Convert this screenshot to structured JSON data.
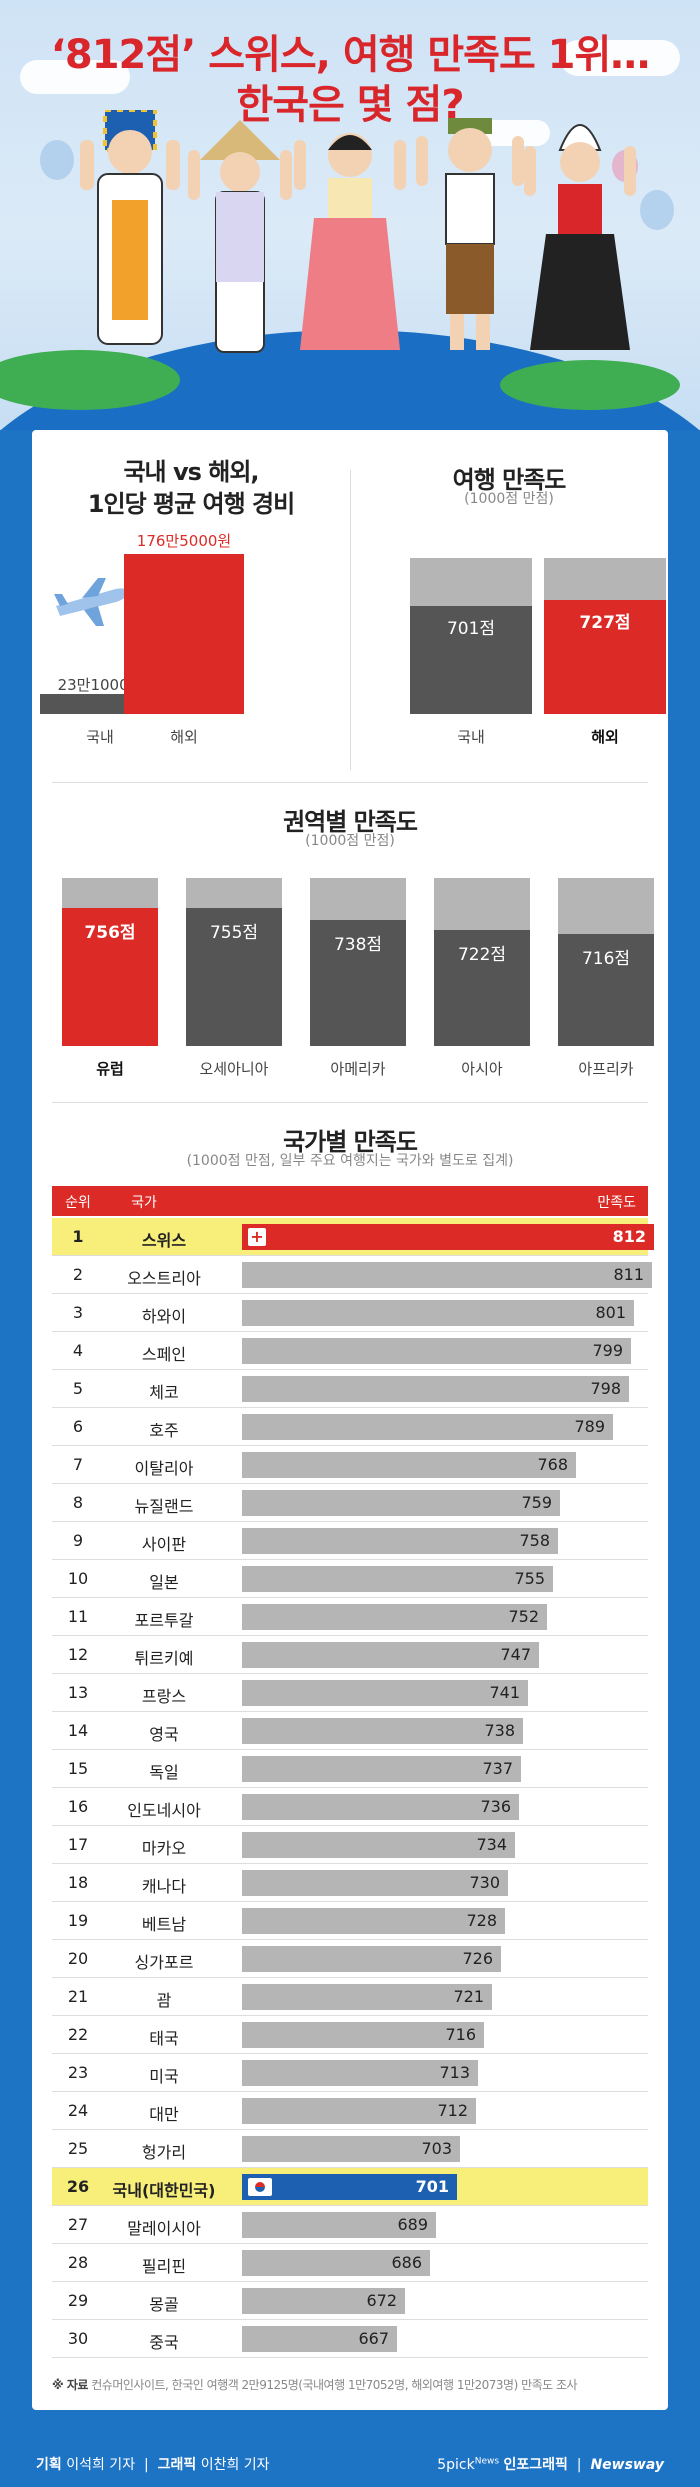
{
  "title": {
    "line1": "‘812점’ 스위스, 여행 만족도 1위…",
    "line2": "한국은 몇 점?"
  },
  "colors": {
    "red": "#dc2a26",
    "dark": "#555555",
    "gray": "#b5b5b5",
    "blue": "#1d73c4",
    "highlight": "#f7ef7a"
  },
  "cost": {
    "title_line1": "국내 vs 해외,",
    "title_line2": "1인당 평균 여행 경비",
    "plane_icon": "airplane-icon",
    "domestic": {
      "label": "국내",
      "value_text": "23만1000원",
      "value": 231000
    },
    "overseas": {
      "label": "해외",
      "value_text": "176만5000원",
      "value": 1765000
    }
  },
  "satisfaction": {
    "title": "여행 만족도",
    "subtitle": "(1000점 만점)",
    "domestic": {
      "label": "국내",
      "value_text": "701점",
      "value": 701
    },
    "overseas": {
      "label": "해외",
      "value_text": "727점",
      "value": 727
    }
  },
  "region": {
    "title": "권역별 만족도",
    "subtitle": "(1000점 만점)",
    "items": [
      {
        "label": "유럽",
        "value_text": "756점",
        "value": 756
      },
      {
        "label": "오세아니아",
        "value_text": "755점",
        "value": 755
      },
      {
        "label": "아메리카",
        "value_text": "738점",
        "value": 738
      },
      {
        "label": "아시아",
        "value_text": "722점",
        "value": 722
      },
      {
        "label": "아프리카",
        "value_text": "716점",
        "value": 716
      }
    ]
  },
  "country": {
    "title": "국가별 만족도",
    "subtitle": "(1000점 만점, 일부 주요 여행지는 국가와 별도로 집계)",
    "headers": {
      "rank": "순위",
      "country": "국가",
      "score": "만족도"
    }
  },
  "chart_data": {
    "type": "bar",
    "categories": [
      "스위스",
      "오스트리아",
      "하와이",
      "스페인",
      "체코",
      "호주",
      "이탈리아",
      "뉴질랜드",
      "사이판",
      "일본",
      "포르투갈",
      "튀르키예",
      "프랑스",
      "영국",
      "독일",
      "인도네시아",
      "마카오",
      "캐나다",
      "베트남",
      "싱가포르",
      "괌",
      "태국",
      "미국",
      "대만",
      "헝가리",
      "국내(대한민국)",
      "말레이시아",
      "필리핀",
      "몽골",
      "중국"
    ],
    "values": [
      812,
      811,
      801,
      799,
      798,
      789,
      768,
      759,
      758,
      755,
      752,
      747,
      741,
      738,
      737,
      736,
      734,
      730,
      728,
      726,
      721,
      716,
      713,
      712,
      703,
      701,
      689,
      686,
      672,
      667
    ],
    "title": "국가별 만족도",
    "xlabel": "국가",
    "ylabel": "만족도",
    "ylim": [
      0,
      1000
    ]
  },
  "source": {
    "label": "※ 자료",
    "text": "컨슈머인사이트, 한국인 여행객 2만9125명(국내여행 1만7052명, 해외여행 1만2073명) 만족도 조사"
  },
  "footer": {
    "plan_label": "기획",
    "plan_name": "이석희 기자",
    "graphic_label": "그래픽",
    "graphic_name": "이찬희 기자",
    "brand": "5pick",
    "brand_sup": "News",
    "brand2": "인포그래픽",
    "brand3": "Newsway"
  }
}
